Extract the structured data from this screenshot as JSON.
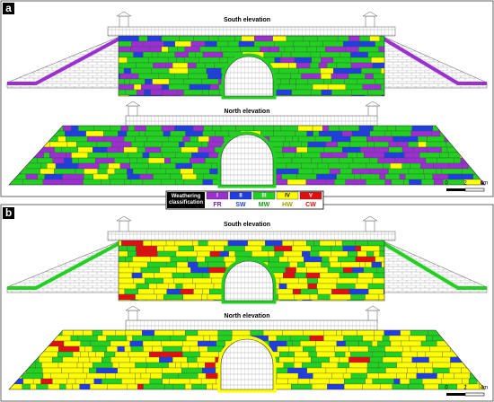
{
  "panels": [
    {
      "label": "a",
      "south_title": "South elevation",
      "north_title": "North elevation",
      "scale": [
        "0",
        "2",
        "4m"
      ]
    },
    {
      "label": "b",
      "south_title": "South elevation",
      "north_title": "North elevation",
      "scale": [
        "0",
        "2",
        "4m"
      ]
    }
  ],
  "legend": {
    "title": "Weathering classification",
    "items": [
      {
        "numeral": "I",
        "code": "FR",
        "color": "#9b30d0",
        "text_color": "#7a1fb0"
      },
      {
        "numeral": "II",
        "code": "SW",
        "color": "#1f3fe0",
        "text_color": "#1f3fe0"
      },
      {
        "numeral": "III",
        "code": "MW",
        "color": "#22d022",
        "text_color": "#1a9a1a"
      },
      {
        "numeral": "IV",
        "code": "HW",
        "color": "#ffff00",
        "text_color": "#a0a000"
      },
      {
        "numeral": "V",
        "code": "CW",
        "color": "#e01010",
        "text_color": "#e01010"
      }
    ]
  }
}
